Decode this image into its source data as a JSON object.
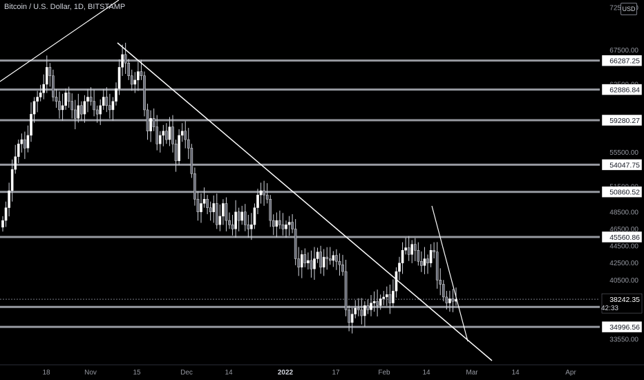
{
  "chart_data": {
    "type": "candlestick",
    "title": "Bitcoin / U.S. Dollar, 1D, BITSTAMP",
    "currency": "USD",
    "ylim": [
      32000,
      73000
    ],
    "y_ticks": [
      "33550.00",
      "40500.00",
      "42500.00",
      "44500.00",
      "46500.00",
      "48500.00",
      "51500.00",
      "55500.00",
      "63500.00",
      "67500.00",
      "72500.00"
    ],
    "x_ticks": [
      "18",
      "Nov",
      "15",
      "Dec",
      "14",
      "2022",
      "17",
      "Feb",
      "14",
      "Mar",
      "14",
      "Apr"
    ],
    "horizontal_levels": [
      {
        "label": "66287.25",
        "value": 66287.25
      },
      {
        "label": "62886.84",
        "value": 62886.84
      },
      {
        "label": "59280.27",
        "value": 59280.27
      },
      {
        "label": "54047.75",
        "value": 54047.75
      },
      {
        "label": "50860.52",
        "value": 50860.52
      },
      {
        "label": "45560.86",
        "value": 45560.86
      },
      {
        "label": "37335.04",
        "value": 37335.04
      },
      {
        "label": "34996.56",
        "value": 34996.56
      }
    ],
    "last_price": {
      "label": "38242.35",
      "value": 38242.35,
      "countdown": "42:33"
    },
    "series": [
      {
        "values": [
          47500,
          49000,
          51000,
          53500,
          55000,
          56500,
          57000,
          56000,
          57500,
          60000,
          61500,
          62000,
          62500,
          63500,
          65500,
          64500,
          62000,
          61500,
          60500,
          61000,
          62500,
          61500,
          60500,
          59500,
          61000,
          60000,
          61500,
          62000,
          61500,
          60500,
          60000,
          61000,
          62000,
          61000,
          60500,
          61500,
          63000,
          65500,
          67000,
          66000,
          64500,
          63500,
          64000,
          65000,
          64500,
          60500,
          58000,
          59500,
          58500,
          56500,
          57500,
          58000,
          57000,
          58500,
          56500,
          54500,
          57500,
          58000,
          57000,
          56000,
          53000,
          50000,
          48500,
          49500,
          50000,
          49000,
          48500,
          49500,
          47000,
          48000,
          49500,
          47500,
          47000,
          46500,
          48500,
          47500,
          48500,
          47000,
          46500,
          47000,
          49000,
          50500,
          51000,
          50500,
          50000,
          47500,
          46800,
          47500,
          47000,
          46500,
          47000,
          47300,
          46500,
          43000,
          42000,
          43500,
          42500,
          42800,
          41800,
          43000,
          43800,
          42000,
          43200,
          43000,
          42800,
          43400,
          42700,
          42300,
          41500,
          37000,
          35500,
          36500,
          37200,
          37000,
          36300,
          37500,
          37000,
          37800,
          38000,
          37500,
          38300,
          38500,
          38800,
          37800,
          39200,
          41500,
          42500,
          44000,
          44300,
          43500,
          44700,
          44000,
          42700,
          42200,
          43000,
          42500,
          44000,
          43800,
          40500,
          40000,
          38500,
          37800,
          38300,
          38000,
          38242
        ]
      }
    ]
  }
}
